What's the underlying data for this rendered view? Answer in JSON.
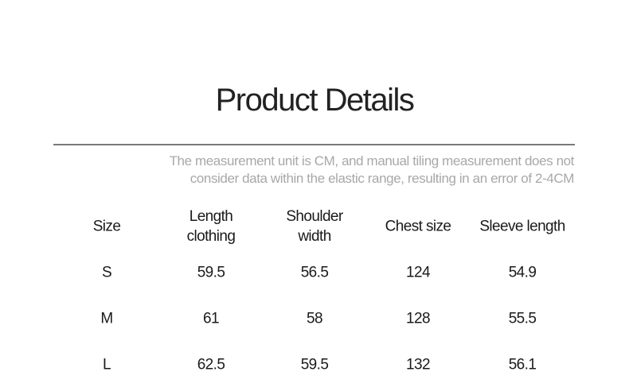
{
  "title": "Product Details",
  "note": [
    "The measurement unit is CM, and manual tiling measurement does not",
    "consider data within the elastic range, resulting in an error of 2-4CM"
  ],
  "table": {
    "headers": [
      [
        "Size"
      ],
      [
        "Length",
        "clothing"
      ],
      [
        "Shoulder",
        "width"
      ],
      [
        "Chest size"
      ],
      [
        "Sleeve length"
      ]
    ],
    "rows": [
      [
        "S",
        "59.5",
        "56.5",
        "124",
        "54.9"
      ],
      [
        "M",
        "61",
        "58",
        "128",
        "55.5"
      ],
      [
        "L",
        "62.5",
        "59.5",
        "132",
        "56.1"
      ]
    ]
  }
}
